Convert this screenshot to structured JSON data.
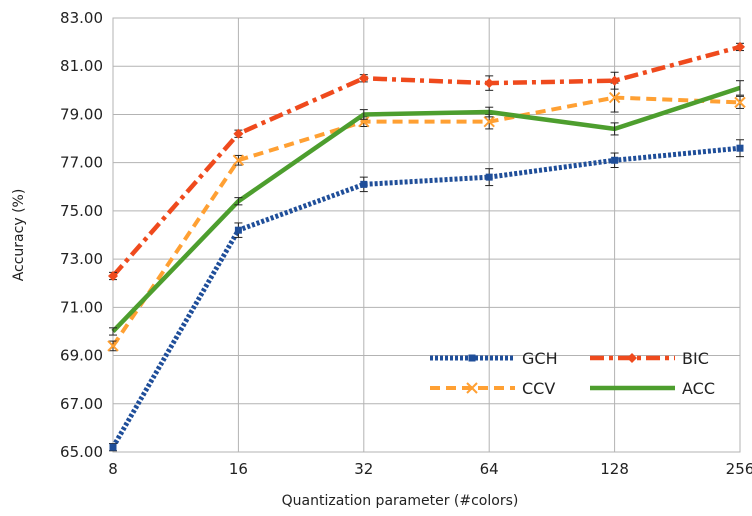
{
  "chart_data": {
    "type": "line",
    "title": "",
    "xlabel": "Quantization parameter (#colors)",
    "ylabel": "Accuracy (%)",
    "categories": [
      "8",
      "16",
      "32",
      "64",
      "128",
      "256"
    ],
    "ylim": [
      65,
      83
    ],
    "yticks": [
      "65.00",
      "67.00",
      "69.00",
      "71.00",
      "73.00",
      "75.00",
      "77.00",
      "79.00",
      "81.00",
      "83.00"
    ],
    "grid": true,
    "legend_position": "bottom-right",
    "series": [
      {
        "name": "GCH",
        "values": [
          65.2,
          74.2,
          76.1,
          76.4,
          77.1,
          77.6
        ],
        "errors": [
          0.15,
          0.3,
          0.3,
          0.35,
          0.3,
          0.35
        ],
        "color": "#1f4e99",
        "style": "dotted",
        "marker": "square"
      },
      {
        "name": "BIC",
        "values": [
          72.3,
          78.2,
          80.5,
          80.3,
          80.4,
          81.8
        ],
        "errors": [
          0.15,
          0.15,
          0.15,
          0.3,
          0.35,
          0.15
        ],
        "color": "#ef4a1d",
        "style": "dashdot",
        "marker": "diamond"
      },
      {
        "name": "CCV",
        "values": [
          69.4,
          77.1,
          78.7,
          78.7,
          79.7,
          79.5
        ],
        "errors": [
          0.2,
          0.2,
          0.2,
          0.3,
          0.6,
          0.25
        ],
        "color": "#ffa033",
        "style": "dashed",
        "marker": "x"
      },
      {
        "name": "ACC",
        "values": [
          70.0,
          75.4,
          79.0,
          79.1,
          78.4,
          80.1
        ],
        "errors": [
          0.15,
          0.15,
          0.2,
          0.2,
          0.25,
          0.3
        ],
        "color": "#4d9e2e",
        "style": "solid",
        "marker": "none"
      }
    ]
  }
}
